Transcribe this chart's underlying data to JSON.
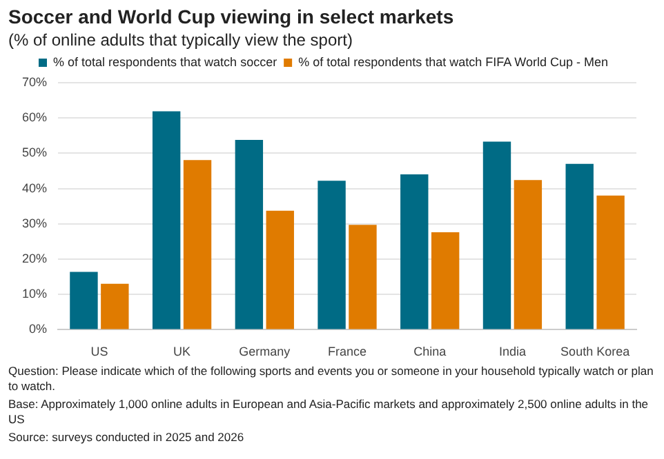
{
  "chart_data": {
    "type": "bar",
    "title": "Soccer and World Cup viewing in select markets",
    "subtitle": "(% of online adults that typically view the sport)",
    "categories": [
      "US",
      "UK",
      "Germany",
      "France",
      "China",
      "India",
      "South Korea"
    ],
    "series": [
      {
        "name": "% of total respondents that watch soccer",
        "color": "#006b85",
        "values": [
          16.4,
          61.9,
          53.8,
          42.2,
          44.0,
          53.3,
          47.0
        ]
      },
      {
        "name": "% of total respondents that watch FIFA World Cup - Men",
        "color": "#e07b00",
        "values": [
          13.0,
          48.1,
          33.7,
          29.7,
          27.6,
          42.4,
          38.0
        ]
      }
    ],
    "ylim": [
      0,
      70
    ],
    "yticks": [
      {
        "value": 0,
        "label": "0%"
      },
      {
        "value": 10,
        "label": "10%"
      },
      {
        "value": 20,
        "label": "20%"
      },
      {
        "value": 30,
        "label": "30%"
      },
      {
        "value": 40,
        "label": "40%"
      },
      {
        "value": 50,
        "label": "50%"
      },
      {
        "value": 60,
        "label": "60%"
      },
      {
        "value": 70,
        "label": "70%"
      }
    ],
    "grid": "y",
    "legend": "top",
    "annotations": [
      "Question: Please indicate which of the following sports and events you or someone in your household typically watch or plan to watch.",
      "Base: Approximately 1,000 online adults in European and Asia-Pacific markets and approximately 2,500 online adults in the US",
      "Source: surveys conducted in 2025 and 2026"
    ]
  }
}
